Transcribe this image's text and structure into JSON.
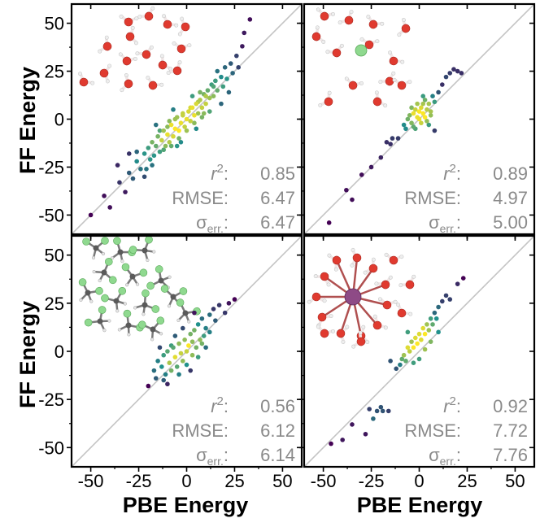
{
  "figure": {
    "x_axis_title": "PBE Energy",
    "y_axis_title": "FF Energy",
    "x_ticks": [
      "-50",
      "-25",
      "0",
      "25",
      "50"
    ],
    "y_ticks": [
      "50",
      "25",
      "0",
      "-25",
      "-50"
    ],
    "colors": {
      "identity_line": "#c4c4c4",
      "stat_text": "#8a8a8a",
      "viridis_low": "#440154",
      "viridis_mid": "#21918c",
      "viridis_high": "#fde725",
      "oxygen": "#e03a2f",
      "hydrogen": "#f0e6e6",
      "chloride": "#8fd98f",
      "carbon": "#5a5a5a",
      "cation_large": "#8e4a86"
    }
  },
  "chart_data": [
    {
      "type": "scatter",
      "panel": "top-left",
      "molecule_icon": "water-cluster-icon",
      "xlim": [
        -60,
        60
      ],
      "ylim": [
        -60,
        60
      ],
      "xlabel": "",
      "ylabel": "FF Energy",
      "identity_line": true,
      "stats": {
        "r2_label": "r",
        "r2_sup": "2",
        "r2": "0.85",
        "rmse_label": "RMSE:",
        "rmse": "6.47",
        "sigma_label": "σ",
        "sigma_sub": "err.",
        "sigma": "6.47"
      },
      "points": [
        [
          -50,
          -50
        ],
        [
          -43,
          -40
        ],
        [
          -40,
          -46
        ],
        [
          -35,
          -33
        ],
        [
          -32,
          -38
        ],
        [
          -30,
          -28
        ],
        [
          -28,
          -31
        ],
        [
          -26,
          -22
        ],
        [
          -24,
          -26
        ],
        [
          -22,
          -18
        ],
        [
          -21,
          -26
        ],
        [
          -20,
          -15
        ],
        [
          -19,
          -21
        ],
        [
          -18,
          -12
        ],
        [
          -17,
          -19
        ],
        [
          -16,
          -14
        ],
        [
          -15,
          -9
        ],
        [
          -14,
          -17
        ],
        [
          -13,
          -11
        ],
        [
          -12,
          -6
        ],
        [
          -11,
          -14
        ],
        [
          -10,
          -8
        ],
        [
          -9,
          -12
        ],
        [
          -8,
          -3
        ],
        [
          -7,
          -9
        ],
        [
          -6,
          -5
        ],
        [
          -5,
          1
        ],
        [
          -4,
          -6
        ],
        [
          -3,
          -2
        ],
        [
          -2,
          3
        ],
        [
          -1,
          -4
        ],
        [
          0,
          0
        ],
        [
          1,
          4
        ],
        [
          2,
          -1
        ],
        [
          3,
          6
        ],
        [
          4,
          2
        ],
        [
          5,
          8
        ],
        [
          6,
          3
        ],
        [
          7,
          10
        ],
        [
          8,
          6
        ],
        [
          9,
          13
        ],
        [
          10,
          8
        ],
        [
          11,
          15
        ],
        [
          12,
          11
        ],
        [
          13,
          18
        ],
        [
          14,
          12
        ],
        [
          15,
          20
        ],
        [
          16,
          15
        ],
        [
          18,
          22
        ],
        [
          19,
          17
        ],
        [
          20,
          27
        ],
        [
          21,
          21
        ],
        [
          23,
          29
        ],
        [
          24,
          24
        ],
        [
          26,
          33
        ],
        [
          27,
          27
        ],
        [
          29,
          38
        ],
        [
          30,
          45
        ],
        [
          33,
          52
        ],
        [
          -12,
          -16
        ],
        [
          -10,
          -4
        ],
        [
          -8,
          -14
        ],
        [
          -6,
          0
        ],
        [
          -4,
          -10
        ],
        [
          -2,
          2
        ],
        [
          0,
          -6
        ],
        [
          2,
          6
        ],
        [
          4,
          -2
        ],
        [
          6,
          9
        ],
        [
          8,
          1
        ],
        [
          10,
          12
        ],
        [
          12,
          4
        ],
        [
          14,
          17
        ],
        [
          -18,
          -24
        ],
        [
          -14,
          -6
        ],
        [
          -22,
          -30
        ],
        [
          -26,
          -17
        ],
        [
          18,
          8
        ],
        [
          22,
          14
        ],
        [
          -30,
          -18
        ],
        [
          -36,
          -24
        ],
        [
          -5,
          -14
        ],
        [
          5,
          -5
        ],
        [
          -16,
          -3
        ],
        [
          16,
          25
        ],
        [
          -7,
          5
        ],
        [
          7,
          14
        ],
        [
          -3,
          -12
        ],
        [
          3,
          12
        ],
        [
          -9,
          -1
        ],
        [
          9,
          3
        ]
      ]
    },
    {
      "type": "scatter",
      "panel": "top-right",
      "molecule_icon": "water-chloride-cluster-icon",
      "xlim": [
        -60,
        60
      ],
      "ylim": [
        -60,
        60
      ],
      "xlabel": "",
      "ylabel": "",
      "identity_line": true,
      "stats": {
        "r2_label": "r",
        "r2_sup": "2",
        "r2": "0.89",
        "rmse_label": "RMSE:",
        "rmse": "4.97",
        "sigma_label": "σ",
        "sigma_sub": "err.",
        "sigma": "5.00"
      },
      "points": [
        [
          -47,
          -54
        ],
        [
          -38,
          -37
        ],
        [
          -35,
          -42
        ],
        [
          -30,
          -29
        ],
        [
          -25,
          -25
        ],
        [
          -20,
          -20
        ],
        [
          -17,
          -12
        ],
        [
          -15,
          -13
        ],
        [
          -14,
          -10
        ],
        [
          -11,
          -10
        ],
        [
          -8,
          -3
        ],
        [
          -7,
          -5
        ],
        [
          -6,
          0
        ],
        [
          -5,
          2
        ],
        [
          -4,
          -2
        ],
        [
          -3,
          3
        ],
        [
          -2,
          5
        ],
        [
          -1,
          1
        ],
        [
          0,
          0
        ],
        [
          0,
          4
        ],
        [
          1,
          6
        ],
        [
          1,
          -2
        ],
        [
          2,
          3
        ],
        [
          2,
          8
        ],
        [
          3,
          1
        ],
        [
          3,
          10
        ],
        [
          4,
          5
        ],
        [
          4,
          -1
        ],
        [
          5,
          8
        ],
        [
          6,
          2
        ],
        [
          7,
          12
        ],
        [
          8,
          9
        ],
        [
          10,
          14
        ],
        [
          12,
          18
        ],
        [
          14,
          22
        ],
        [
          16,
          24
        ],
        [
          18,
          26
        ],
        [
          20,
          25
        ],
        [
          22,
          24
        ],
        [
          -1,
          8
        ],
        [
          -3,
          -4
        ],
        [
          5,
          -3
        ],
        [
          8,
          -6
        ],
        [
          -4,
          6
        ],
        [
          2,
          12
        ],
        [
          -2,
          -5
        ],
        [
          6,
          4
        ]
      ]
    },
    {
      "type": "scatter",
      "panel": "bottom-left",
      "molecule_icon": "dichloromethane-cluster-icon",
      "xlim": [
        -60,
        60
      ],
      "ylim": [
        -60,
        60
      ],
      "xlabel": "PBE Energy",
      "ylabel": "FF Energy",
      "identity_line": true,
      "stats": {
        "r2_label": "r",
        "r2_sup": "2",
        "r2": "0.56",
        "rmse_label": "RMSE:",
        "rmse": "6.12",
        "sigma_label": "σ",
        "sigma_sub": "err.",
        "sigma": "6.14"
      },
      "points": [
        [
          -20,
          -18
        ],
        [
          -17,
          -10
        ],
        [
          -16,
          -14
        ],
        [
          -15,
          -5
        ],
        [
          -13,
          -8
        ],
        [
          -12,
          -2
        ],
        [
          -11,
          -12
        ],
        [
          -10,
          0
        ],
        [
          -9,
          -6
        ],
        [
          -8,
          -10
        ],
        [
          -7,
          2
        ],
        [
          -6,
          -3
        ],
        [
          -5,
          -8
        ],
        [
          -4,
          4
        ],
        [
          -3,
          -1
        ],
        [
          -2,
          -5
        ],
        [
          -1,
          6
        ],
        [
          0,
          0
        ],
        [
          0,
          -7
        ],
        [
          1,
          3
        ],
        [
          2,
          9
        ],
        [
          3,
          -2
        ],
        [
          3,
          5
        ],
        [
          4,
          11
        ],
        [
          5,
          2
        ],
        [
          6,
          14
        ],
        [
          7,
          6
        ],
        [
          8,
          17
        ],
        [
          9,
          8
        ],
        [
          10,
          12
        ],
        [
          12,
          19
        ],
        [
          14,
          22
        ],
        [
          15,
          16
        ],
        [
          17,
          24
        ],
        [
          20,
          20
        ],
        [
          22,
          25
        ],
        [
          25,
          27
        ],
        [
          -12,
          -15
        ],
        [
          -8,
          3
        ],
        [
          -4,
          -12
        ],
        [
          2,
          -10
        ],
        [
          6,
          -3
        ],
        [
          -14,
          2
        ],
        [
          10,
          2
        ],
        [
          -6,
          8
        ],
        [
          4,
          20
        ],
        [
          12,
          10
        ],
        [
          -10,
          -17
        ],
        [
          8,
          4
        ],
        [
          -2,
          12
        ]
      ]
    },
    {
      "type": "scatter",
      "panel": "bottom-right",
      "molecule_icon": "water-cation-cluster-icon",
      "xlim": [
        -60,
        60
      ],
      "ylim": [
        -60,
        60
      ],
      "xlabel": "PBE Energy",
      "ylabel": "",
      "identity_line": true,
      "stats": {
        "r2_label": "r",
        "r2_sup": "2",
        "r2": "0.92",
        "rmse_label": "RMSE:",
        "rmse": "7.72",
        "sigma_label": "σ",
        "sigma_sub": "err.",
        "sigma": "7.76"
      },
      "points": [
        [
          -46,
          -48
        ],
        [
          -40,
          -46
        ],
        [
          -35,
          -38
        ],
        [
          -28,
          -43
        ],
        [
          -26,
          -30
        ],
        [
          -24,
          -35
        ],
        [
          -22,
          -31
        ],
        [
          -20,
          -29
        ],
        [
          -19,
          -31
        ],
        [
          -16,
          -31
        ],
        [
          -15,
          -5
        ],
        [
          -12,
          -9
        ],
        [
          -10,
          -7
        ],
        [
          -8,
          -2
        ],
        [
          -7,
          -5
        ],
        [
          -6,
          2
        ],
        [
          -5,
          0
        ],
        [
          -4,
          5
        ],
        [
          -3,
          2
        ],
        [
          -2,
          7
        ],
        [
          -1,
          4
        ],
        [
          0,
          9
        ],
        [
          1,
          6
        ],
        [
          2,
          12
        ],
        [
          3,
          9
        ],
        [
          4,
          14
        ],
        [
          5,
          11
        ],
        [
          6,
          17
        ],
        [
          7,
          14
        ],
        [
          8,
          20
        ],
        [
          9,
          17
        ],
        [
          10,
          23
        ],
        [
          12,
          26
        ],
        [
          14,
          29
        ],
        [
          16,
          27
        ],
        [
          20,
          35
        ],
        [
          23,
          38
        ],
        [
          -9,
          -4
        ],
        [
          -3,
          -6
        ],
        [
          3,
          1
        ],
        [
          6,
          5
        ],
        [
          -6,
          10
        ],
        [
          10,
          10
        ],
        [
          0,
          -4
        ]
      ]
    }
  ]
}
